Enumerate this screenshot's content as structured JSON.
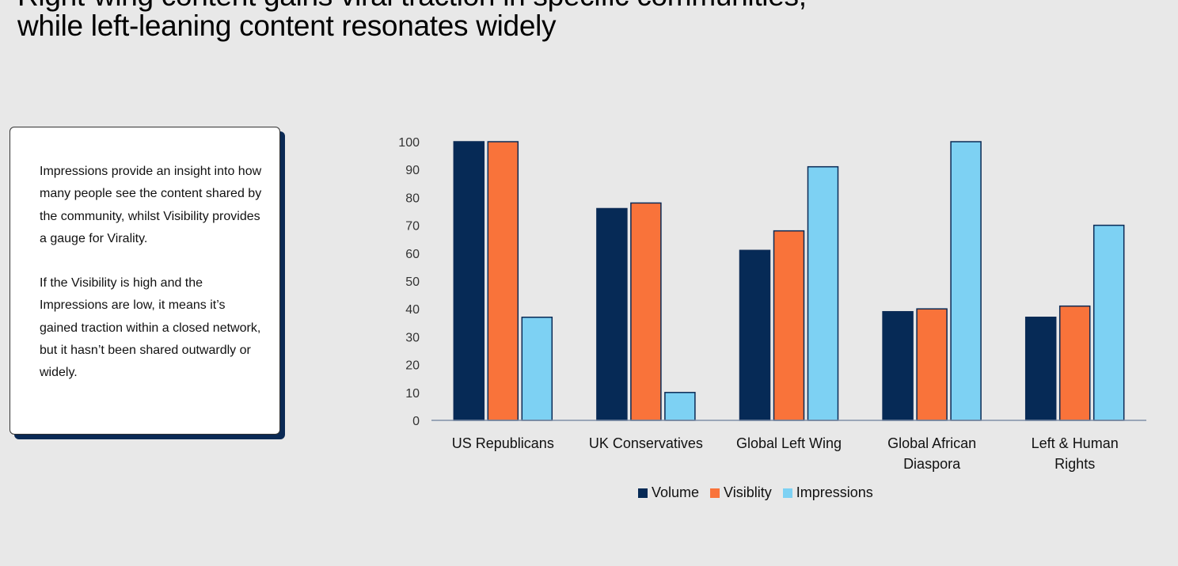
{
  "header": {
    "title_line1": "Right-wing content gains viral traction in specific communities,",
    "title_line2": "while left-leaning content resonates widely"
  },
  "note": {
    "paragraph1": "Impressions provide an insight into how many people see the content shared by the community, whilst Visibility provides a gauge for Virality.",
    "paragraph2": "If the Visibility is high and the Impressions are low, it means it’s gained traction within a closed network, but it hasn’t been shared outwardly or widely."
  },
  "chart_data": {
    "type": "bar",
    "categories": [
      [
        "US Republicans"
      ],
      [
        "UK Conservatives"
      ],
      [
        "Global Left Wing"
      ],
      [
        "Global African",
        "Diaspora"
      ],
      [
        "Left & Human",
        "Rights"
      ]
    ],
    "series": [
      {
        "name": "Volume",
        "color": "#062a56",
        "values": [
          100,
          76,
          61,
          39,
          37
        ]
      },
      {
        "name": "Visiblity",
        "color": "#f9733a",
        "values": [
          100,
          78,
          68,
          40,
          41
        ]
      },
      {
        "name": "Impressions",
        "color": "#7dd1f3",
        "values": [
          37,
          10,
          91,
          100,
          70
        ]
      }
    ],
    "ylim": [
      0,
      100
    ],
    "yticks": [
      0,
      10,
      20,
      30,
      40,
      50,
      60,
      70,
      80,
      90,
      100
    ],
    "legend": "bottom"
  }
}
